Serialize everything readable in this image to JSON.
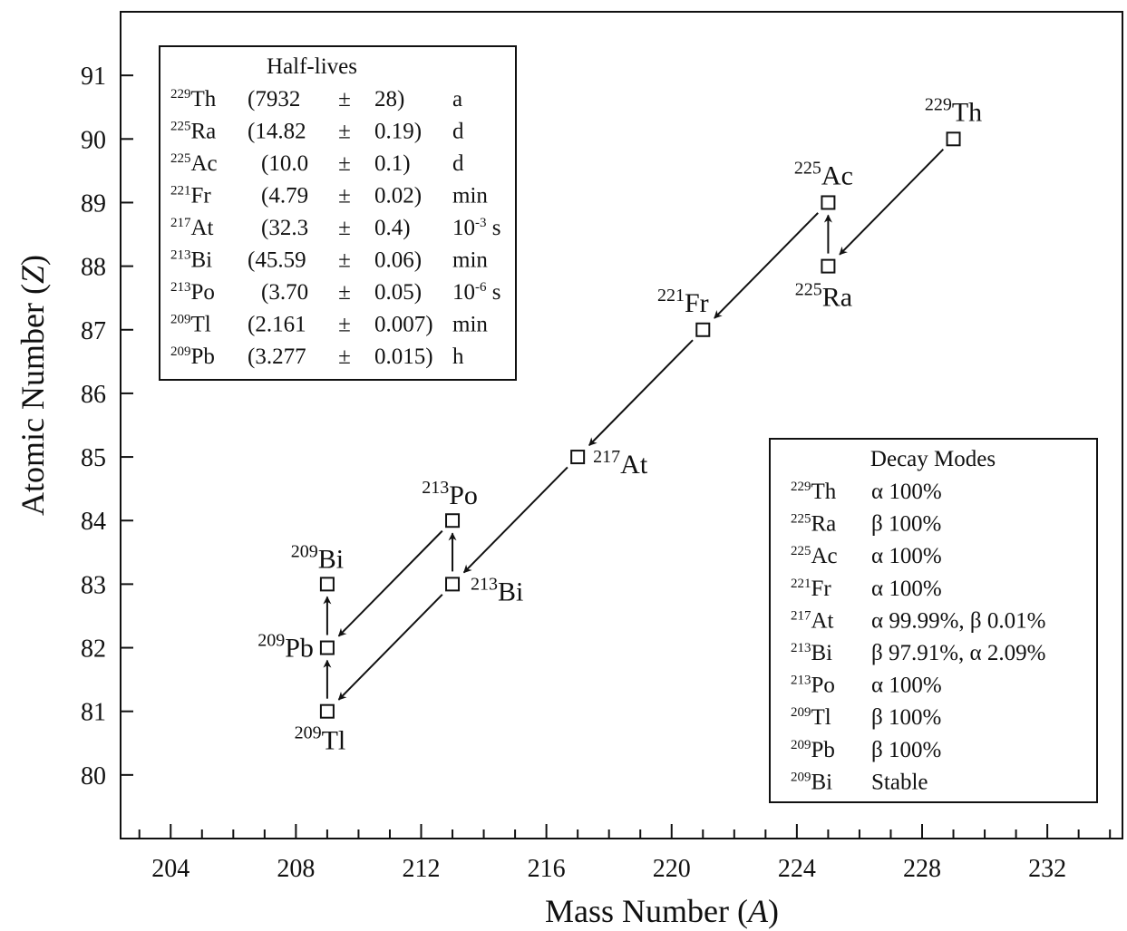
{
  "chart_data": {
    "type": "scatter",
    "xlabel_main": "Mass Number (",
    "xlabel_var": "A",
    "xlabel_close": ")",
    "ylabel_main": "Atomic Number (",
    "ylabel_var": "Z",
    "ylabel_close": ")",
    "xlim": [
      202.4,
      234.4
    ],
    "ylim": [
      79,
      92
    ],
    "x_ticks": [
      204,
      208,
      212,
      216,
      220,
      224,
      228,
      232
    ],
    "y_ticks": [
      80,
      81,
      82,
      83,
      84,
      85,
      86,
      87,
      88,
      89,
      90,
      91
    ],
    "nuclides": [
      {
        "mass": "229",
        "sym": "Th",
        "A": 229,
        "Z": 90
      },
      {
        "mass": "225",
        "sym": "Ra",
        "A": 225,
        "Z": 88
      },
      {
        "mass": "225",
        "sym": "Ac",
        "A": 225,
        "Z": 89
      },
      {
        "mass": "221",
        "sym": "Fr",
        "A": 221,
        "Z": 87
      },
      {
        "mass": "217",
        "sym": "At",
        "A": 217,
        "Z": 85
      },
      {
        "mass": "213",
        "sym": "Bi",
        "A": 213,
        "Z": 83
      },
      {
        "mass": "213",
        "sym": "Po",
        "A": 213,
        "Z": 84
      },
      {
        "mass": "209",
        "sym": "Tl",
        "A": 209,
        "Z": 81
      },
      {
        "mass": "209",
        "sym": "Pb",
        "A": 209,
        "Z": 82
      },
      {
        "mass": "209",
        "sym": "Bi",
        "A": 209,
        "Z": 83
      }
    ],
    "decays": [
      {
        "from": [
          229,
          90
        ],
        "to": [
          225,
          88
        ],
        "mode": "alpha"
      },
      {
        "from": [
          225,
          88
        ],
        "to": [
          225,
          89
        ],
        "mode": "beta"
      },
      {
        "from": [
          225,
          89
        ],
        "to": [
          221,
          87
        ],
        "mode": "alpha"
      },
      {
        "from": [
          221,
          87
        ],
        "to": [
          217,
          85
        ],
        "mode": "alpha"
      },
      {
        "from": [
          217,
          85
        ],
        "to": [
          213,
          83
        ],
        "mode": "alpha"
      },
      {
        "from": [
          213,
          83
        ],
        "to": [
          213,
          84
        ],
        "mode": "beta"
      },
      {
        "from": [
          213,
          84
        ],
        "to": [
          209,
          82
        ],
        "mode": "alpha"
      },
      {
        "from": [
          213,
          83
        ],
        "to": [
          209,
          81
        ],
        "mode": "alpha"
      },
      {
        "from": [
          209,
          81
        ],
        "to": [
          209,
          82
        ],
        "mode": "beta"
      },
      {
        "from": [
          209,
          82
        ],
        "to": [
          209,
          83
        ],
        "mode": "beta"
      }
    ],
    "half_lives": {
      "title": "Half-lives",
      "rows": [
        {
          "mass": "229",
          "sym": "Th",
          "value": "(7932",
          "pm": "±",
          "unc": "28)",
          "unit": "a",
          "unit_exp": ""
        },
        {
          "mass": "225",
          "sym": "Ra",
          "value": "(14.82",
          "pm": "±",
          "unc": "0.19)",
          "unit": "d",
          "unit_exp": ""
        },
        {
          "mass": "225",
          "sym": "Ac",
          "value": "(10.0",
          "pm": "±",
          "unc": "0.1)",
          "unit": "d",
          "unit_exp": ""
        },
        {
          "mass": "221",
          "sym": "Fr",
          "value": "(4.79",
          "pm": "±",
          "unc": "0.02)",
          "unit": "min",
          "unit_exp": ""
        },
        {
          "mass": "217",
          "sym": "At",
          "value": "(32.3",
          "pm": "±",
          "unc": "0.4)",
          "unit": "10",
          "unit_exp": "-3",
          "unit_tail": " s"
        },
        {
          "mass": "213",
          "sym": "Bi",
          "value": "(45.59",
          "pm": "±",
          "unc": "0.06)",
          "unit": "min",
          "unit_exp": ""
        },
        {
          "mass": "213",
          "sym": "Po",
          "value": "(3.70",
          "pm": "±",
          "unc": "0.05)",
          "unit": "10",
          "unit_exp": "-6",
          "unit_tail": " s"
        },
        {
          "mass": "209",
          "sym": "Tl",
          "value": "(2.161",
          "pm": "±",
          "unc": "0.007)",
          "unit": "min",
          "unit_exp": ""
        },
        {
          "mass": "209",
          "sym": "Pb",
          "value": "(3.277",
          "pm": "±",
          "unc": "0.015)",
          "unit": "h",
          "unit_exp": ""
        }
      ]
    },
    "decay_modes": {
      "title": "Decay Modes",
      "rows": [
        {
          "mass": "229",
          "sym": "Th",
          "mode": "α 100%"
        },
        {
          "mass": "225",
          "sym": "Ra",
          "mode": "β 100%"
        },
        {
          "mass": "225",
          "sym": "Ac",
          "mode": "α 100%"
        },
        {
          "mass": "221",
          "sym": "Fr",
          "mode": "α 100%"
        },
        {
          "mass": "217",
          "sym": "At",
          "mode": "α 99.99%, β 0.01%"
        },
        {
          "mass": "213",
          "sym": "Bi",
          "mode": "β 97.91%, α 2.09%"
        },
        {
          "mass": "213",
          "sym": "Po",
          "mode": "α 100%"
        },
        {
          "mass": "209",
          "sym": "Tl",
          "mode": "β 100%"
        },
        {
          "mass": "209",
          "sym": "Pb",
          "mode": "β 100%"
        },
        {
          "mass": "209",
          "sym": "Bi",
          "mode": "Stable"
        }
      ]
    }
  }
}
